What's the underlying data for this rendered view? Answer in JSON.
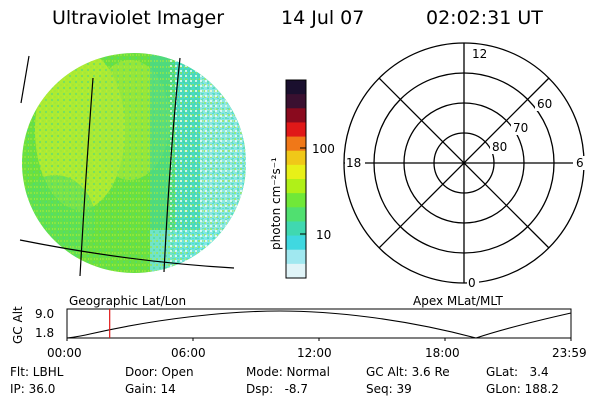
{
  "header": {
    "instrument": "Ultraviolet Imager",
    "date": "14 Jul 07",
    "time": "02:02:31 UT"
  },
  "colorbar": {
    "label": "photon cm⁻²s⁻¹",
    "ticks": [
      "100",
      "10"
    ],
    "scale": "log",
    "colors": [
      "#1a0f2e",
      "#3a1030",
      "#8a0a1e",
      "#e01818",
      "#f07818",
      "#f0c818",
      "#e8f018",
      "#b0f018",
      "#70e838",
      "#50e070",
      "#40d8b0",
      "#40d8e0",
      "#a0e8f0",
      "#e0f4f8"
    ]
  },
  "left_panel": {
    "label": "Geographic Lat/Lon"
  },
  "polar_plot": {
    "label": "Apex MLat/MLT",
    "mlt_labels": [
      "12",
      "18",
      "6",
      "0"
    ],
    "lat_labels": [
      "60",
      "70",
      "80"
    ]
  },
  "timeline": {
    "ylabel": "GC Alt",
    "yticks": [
      "9.0",
      "1.8"
    ],
    "xticks": [
      "00:00",
      "06:00",
      "12:00",
      "18:00",
      "23:59"
    ],
    "current_time_fraction": 0.0847
  },
  "status": {
    "flt": "Flt: LBHL",
    "ip": "IP: 36.0",
    "door": "Door: Open",
    "gain": "Gain: 14",
    "mode": "Mode: Normal",
    "dsp": "Dsp:   -8.7",
    "gcalt": "GC Alt: 3.6 Re",
    "seq": "Seq: 39",
    "glat": "GLat:   3.4",
    "glon": "GLon: 188.2"
  }
}
